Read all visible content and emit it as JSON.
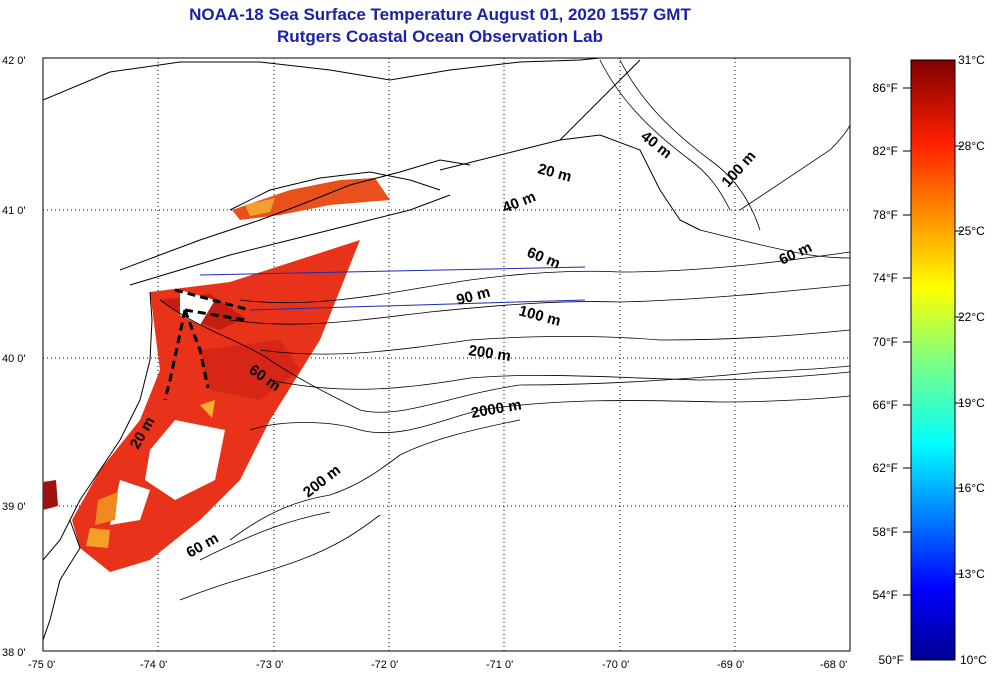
{
  "header": {
    "title": "NOAA-18 Sea Surface Temperature August 01, 2020 1557 GMT",
    "subtitle": "Rutgers Coastal Ocean Observation Lab"
  },
  "map": {
    "lon_ticks": [
      "-75 0'",
      "-74 0'",
      "-73 0'",
      "-72 0'",
      "-71 0'",
      "-70 0'",
      "-69 0'",
      "-68 0'"
    ],
    "lat_ticks": [
      "38 0'",
      "39 0'",
      "40 0'",
      "41 0'",
      "42 0'"
    ],
    "lon_range": [
      -75,
      -68
    ],
    "lat_range": [
      38,
      42
    ],
    "grid": true,
    "contour_labels": [
      "40 m",
      "20 m",
      "40 m",
      "100 m",
      "60 m",
      "60 m",
      "90 m",
      "100 m",
      "200 m",
      "60 m",
      "2000 m",
      "20 m",
      "200 m",
      "60 m"
    ]
  },
  "colorbar": {
    "fahrenheit_labels": [
      "86°F",
      "82°F",
      "78°F",
      "74°F",
      "70°F",
      "66°F",
      "62°F",
      "58°F",
      "54°F",
      "50°F"
    ],
    "celsius_labels": [
      "31°C",
      "28°C",
      "25°C",
      "22°C",
      "19°C",
      "16°C",
      "13°C",
      "10°C"
    ],
    "range_celsius": [
      10,
      31
    ],
    "colormap": "jet"
  },
  "colors": {
    "title": "#1a22a8",
    "land_line": "#000000",
    "cool": "#00008f",
    "warm": "#e8321a",
    "hot": "#800000"
  }
}
